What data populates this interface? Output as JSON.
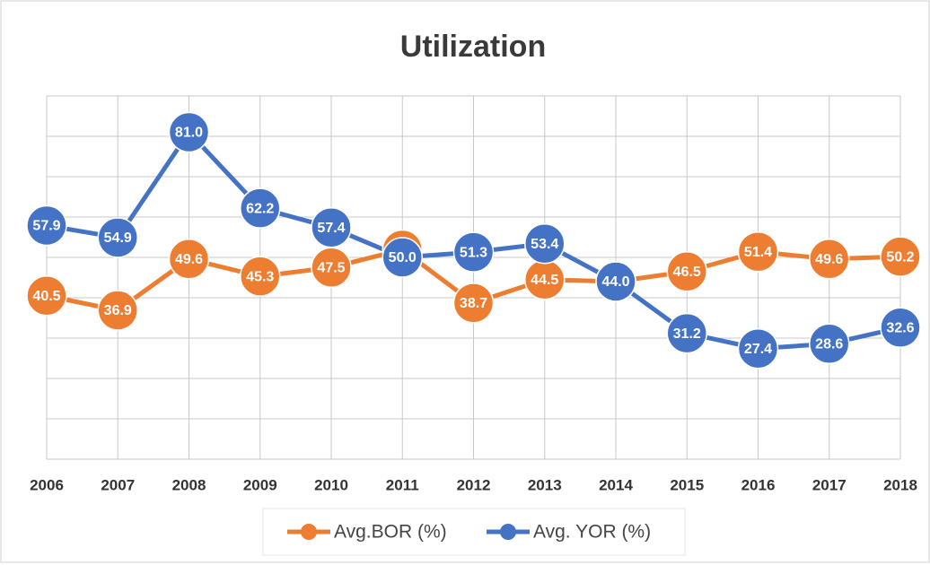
{
  "chart_data": {
    "type": "line",
    "title": "Utilization",
    "categories": [
      "2006",
      "2007",
      "2008",
      "2009",
      "2010",
      "2011",
      "2012",
      "2013",
      "2014",
      "2015",
      "2016",
      "2017",
      "2018"
    ],
    "series": [
      {
        "name": "Avg.BOR (%)",
        "color": "#ed7d31",
        "values": [
          40.5,
          36.9,
          49.6,
          45.3,
          47.5,
          51.9,
          38.7,
          44.5,
          44.0,
          46.5,
          51.4,
          49.6,
          50.2
        ],
        "value_labels": [
          "40.5",
          "36.9",
          "49.6",
          "45.3",
          "47.5",
          "51.9",
          "38.7",
          "44.5",
          "44.0",
          "46.5",
          "51.4",
          "49.6",
          "50.2"
        ]
      },
      {
        "name": "Avg. YOR (%)",
        "color": "#4472c4",
        "values": [
          57.9,
          54.9,
          81.0,
          62.2,
          57.4,
          50.0,
          51.3,
          53.4,
          44.0,
          31.2,
          27.4,
          28.6,
          32.6
        ],
        "value_labels": [
          "57.9",
          "54.9",
          "81.0",
          "62.2",
          "57.4",
          "50.0",
          "51.3",
          "53.4",
          "44.0",
          "31.2",
          "27.4",
          "28.6",
          "32.6"
        ]
      }
    ],
    "ylim": [
      0,
      90
    ],
    "yticks": [
      0,
      10,
      20,
      30,
      40,
      50,
      60,
      70,
      80,
      90
    ],
    "grid": true
  }
}
